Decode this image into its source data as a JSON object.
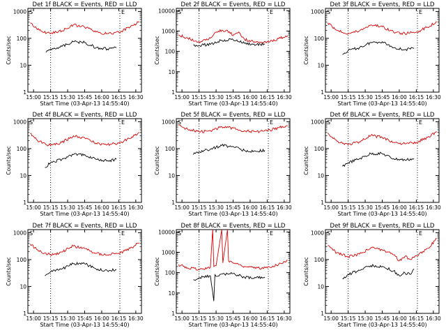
{
  "figure": {
    "colors": {
      "events": "#000000",
      "lld": "#dd0000",
      "axis": "#000000",
      "dotted": "#000000"
    }
  },
  "chart_data": [
    {
      "type": "line",
      "title": "Det 1f BLACK = Events, RED = LLD",
      "xlabel": "Start Time (03-Apr-13 14:55:40)",
      "ylabel": "Counts/sec",
      "x_ticks": [
        "15:00",
        "15:15",
        "15:30",
        "15:45",
        "16:00",
        "16:15",
        "16:30"
      ],
      "y_ticks": [
        "1",
        "10",
        "100",
        "1000"
      ],
      "xlim": [
        "14:55",
        "16:35"
      ],
      "ylim": [
        1,
        1300
      ],
      "yscale": "log",
      "vlines": [
        "15:15",
        "16:16"
      ],
      "markers": [
        "S",
        "E"
      ],
      "series": [
        {
          "color": "#dd0000",
          "x": [
            "14:57",
            "15:05",
            "15:15",
            "15:25",
            "15:35",
            "15:45",
            "15:55",
            "16:05",
            "16:15",
            "16:25",
            "16:33"
          ],
          "y": [
            380,
            200,
            150,
            190,
            320,
            260,
            170,
            150,
            170,
            260,
            420
          ]
        },
        {
          "color": "#000000",
          "x": [
            "15:11",
            "15:15",
            "15:25",
            "15:35",
            "15:45",
            "15:55",
            "16:05",
            "16:13"
          ],
          "y": [
            30,
            40,
            50,
            75,
            70,
            45,
            40,
            45
          ]
        }
      ]
    },
    {
      "type": "line",
      "title": "Det 2f BLACK = Events, RED = LLD",
      "xlabel": "Start Time (03-Apr-13 14:55:40)",
      "ylabel": "Counts/sec",
      "x_ticks": [
        "15:00",
        "15:15",
        "15:30",
        "15:45",
        "16:00",
        "16:15",
        "16:30"
      ],
      "y_ticks": [
        "1",
        "10",
        "100",
        "1000",
        "10000"
      ],
      "xlim": [
        "14:55",
        "16:35"
      ],
      "ylim": [
        1,
        13000
      ],
      "yscale": "log",
      "vlines": [
        "15:15",
        "16:16"
      ],
      "markers": [
        "S",
        "E"
      ],
      "series": [
        {
          "color": "#dd0000",
          "x": [
            "14:57",
            "15:05",
            "15:15",
            "15:25",
            "15:32",
            "15:40",
            "15:45",
            "15:50",
            "15:55",
            "16:05",
            "16:15",
            "16:25",
            "16:33"
          ],
          "y": [
            650,
            450,
            300,
            450,
            1000,
            1100,
            600,
            900,
            400,
            280,
            300,
            420,
            600
          ]
        },
        {
          "color": "#000000",
          "x": [
            "15:10",
            "15:15",
            "15:25",
            "15:35",
            "15:45",
            "15:55",
            "16:05",
            "16:13"
          ],
          "y": [
            200,
            200,
            220,
            350,
            380,
            250,
            210,
            230
          ]
        }
      ]
    },
    {
      "type": "line",
      "title": "Det 3f BLACK = Events, RED = LLD",
      "xlabel": "Start Time (03-Apr-13 14:55:40)",
      "ylabel": "Counts/sec",
      "x_ticks": [
        "15:00",
        "15:15",
        "15:30",
        "15:45",
        "16:00",
        "16:15",
        "16:30"
      ],
      "y_ticks": [
        "1",
        "10",
        "100",
        "1000"
      ],
      "xlim": [
        "14:55",
        "16:35"
      ],
      "ylim": [
        1,
        1300
      ],
      "yscale": "log",
      "vlines": [
        "15:15",
        "16:16"
      ],
      "markers": [
        "S",
        "E"
      ],
      "series": [
        {
          "color": "#dd0000",
          "x": [
            "14:57",
            "15:05",
            "15:15",
            "15:25",
            "15:35",
            "15:45",
            "15:55",
            "16:05",
            "16:15",
            "16:25",
            "16:33"
          ],
          "y": [
            380,
            200,
            150,
            190,
            320,
            270,
            170,
            150,
            170,
            260,
            420
          ]
        },
        {
          "color": "#000000",
          "x": [
            "15:10",
            "15:15",
            "15:25",
            "15:35",
            "15:45",
            "15:55",
            "16:05",
            "16:13"
          ],
          "y": [
            25,
            35,
            45,
            70,
            75,
            45,
            38,
            42
          ]
        }
      ]
    },
    {
      "type": "line",
      "title": "Det 4f BLACK = Events, RED = LLD",
      "xlabel": "Start Time (03-Apr-13 14:55:40)",
      "ylabel": "Counts/sec",
      "x_ticks": [
        "15:00",
        "15:15",
        "15:30",
        "15:45",
        "16:00",
        "16:15",
        "16:30"
      ],
      "y_ticks": [
        "1",
        "10",
        "100",
        "1000"
      ],
      "xlim": [
        "14:55",
        "16:35"
      ],
      "ylim": [
        1,
        1300
      ],
      "yscale": "log",
      "vlines": [
        "15:15",
        "16:16"
      ],
      "markers": [
        "S",
        "E"
      ],
      "series": [
        {
          "color": "#dd0000",
          "x": [
            "14:57",
            "15:05",
            "15:15",
            "15:25",
            "15:35",
            "15:45",
            "15:55",
            "16:05",
            "16:15",
            "16:25",
            "16:33"
          ],
          "y": [
            360,
            180,
            130,
            170,
            300,
            250,
            160,
            140,
            160,
            240,
            400
          ]
        },
        {
          "color": "#000000",
          "x": [
            "15:10",
            "15:15",
            "15:25",
            "15:35",
            "15:45",
            "15:55",
            "16:05",
            "16:13"
          ],
          "y": [
            20,
            30,
            40,
            60,
            60,
            40,
            35,
            40
          ]
        }
      ]
    },
    {
      "type": "line",
      "title": "Det 5f BLACK = Events, RED = LLD",
      "xlabel": "Start Time (03-Apr-13 14:55:40)",
      "ylabel": "Counts/sec",
      "x_ticks": [
        "15:00",
        "15:15",
        "15:30",
        "15:45",
        "16:00",
        "16:15",
        "16:30"
      ],
      "y_ticks": [
        "1",
        "10",
        "100",
        "1000"
      ],
      "xlim": [
        "14:55",
        "16:35"
      ],
      "ylim": [
        1,
        1300
      ],
      "yscale": "log",
      "vlines": [
        "15:15",
        "16:16"
      ],
      "markers": [
        "S",
        "E"
      ],
      "series": [
        {
          "color": "#dd0000",
          "x": [
            "14:57",
            "15:05",
            "15:15",
            "15:25",
            "15:35",
            "15:45",
            "15:55",
            "16:05",
            "16:15",
            "16:25",
            "16:33"
          ],
          "y": [
            750,
            520,
            420,
            470,
            650,
            580,
            460,
            420,
            450,
            600,
            720
          ]
        },
        {
          "color": "#000000",
          "x": [
            "15:10",
            "15:15",
            "15:25",
            "15:35",
            "15:45",
            "15:55",
            "16:05",
            "16:13"
          ],
          "y": [
            60,
            75,
            95,
            130,
            120,
            85,
            80,
            85
          ]
        }
      ]
    },
    {
      "type": "line",
      "title": "Det 6f BLACK = Events, RED = LLD",
      "xlabel": "Start Time (03-Apr-13 14:55:40)",
      "ylabel": "Counts/sec",
      "x_ticks": [
        "15:00",
        "15:15",
        "15:30",
        "15:45",
        "16:00",
        "16:15",
        "16:30"
      ],
      "y_ticks": [
        "1",
        "10",
        "100",
        "1000"
      ],
      "xlim": [
        "14:55",
        "16:35"
      ],
      "ylim": [
        1,
        1300
      ],
      "yscale": "log",
      "vlines": [
        "15:15",
        "16:16"
      ],
      "markers": [
        "S",
        "E"
      ],
      "series": [
        {
          "color": "#dd0000",
          "x": [
            "14:57",
            "15:05",
            "15:15",
            "15:25",
            "15:35",
            "15:45",
            "15:55",
            "16:05",
            "16:15",
            "16:25",
            "16:33"
          ],
          "y": [
            380,
            190,
            140,
            180,
            310,
            260,
            170,
            150,
            170,
            260,
            430
          ]
        },
        {
          "color": "#000000",
          "x": [
            "15:10",
            "15:15",
            "15:25",
            "15:35",
            "15:45",
            "15:55",
            "16:05",
            "16:13"
          ],
          "y": [
            22,
            30,
            42,
            65,
            65,
            42,
            38,
            42
          ]
        }
      ]
    },
    {
      "type": "line",
      "title": "Det 7f BLACK = Events, RED = LLD",
      "xlabel": "Start Time (03-Apr-13 14:55:40)",
      "ylabel": "Counts/sec",
      "x_ticks": [
        "15:00",
        "15:15",
        "15:30",
        "15:45",
        "16:00",
        "16:15",
        "16:30"
      ],
      "y_ticks": [
        "1",
        "10",
        "100",
        "1000"
      ],
      "xlim": [
        "14:55",
        "16:35"
      ],
      "ylim": [
        1,
        1300
      ],
      "yscale": "log",
      "vlines": [
        "15:15",
        "16:16"
      ],
      "markers": [
        "S",
        "E"
      ],
      "series": [
        {
          "color": "#dd0000",
          "x": [
            "14:57",
            "15:05",
            "15:15",
            "15:25",
            "15:35",
            "15:45",
            "15:55",
            "16:05",
            "16:15",
            "16:25",
            "16:33"
          ],
          "y": [
            380,
            200,
            150,
            190,
            320,
            260,
            170,
            150,
            170,
            260,
            420
          ]
        },
        {
          "color": "#000000",
          "x": [
            "15:10",
            "15:15",
            "15:25",
            "15:35",
            "15:45",
            "15:55",
            "16:05",
            "16:13"
          ],
          "y": [
            25,
            35,
            45,
            70,
            70,
            45,
            38,
            42
          ]
        }
      ]
    },
    {
      "type": "line",
      "title": "Det 8f BLACK = Events, RED = LLD",
      "xlabel": "Start Time (03-Apr-13 14:55:40)",
      "ylabel": "Counts/sec",
      "x_ticks": [
        "15:00",
        "15:15",
        "15:30",
        "15:45",
        "16:00",
        "16:15",
        "16:30"
      ],
      "y_ticks": [
        "1",
        "10",
        "100",
        "1000",
        "10000"
      ],
      "xlim": [
        "14:55",
        "16:35"
      ],
      "ylim": [
        1,
        13000
      ],
      "yscale": "log",
      "vlines": [
        "15:15",
        "16:16"
      ],
      "markers": [
        "S",
        "E"
      ],
      "series": [
        {
          "color": "#dd0000",
          "x": [
            "14:57",
            "15:05",
            "15:15",
            "15:25",
            "15:27",
            "15:28",
            "15:30",
            "15:35",
            "15:36",
            "15:40",
            "15:41",
            "15:45",
            "15:55",
            "16:05",
            "16:15",
            "16:25",
            "16:33"
          ],
          "y": [
            250,
            170,
            140,
            180,
            13000,
            200,
            220,
            13000,
            300,
            13000,
            380,
            300,
            200,
            160,
            170,
            250,
            400
          ]
        },
        {
          "color": "#000000",
          "x": [
            "15:10",
            "15:15",
            "15:25",
            "15:28",
            "15:29",
            "15:31",
            "15:35",
            "15:45",
            "15:55",
            "16:05",
            "16:13"
          ],
          "y": [
            45,
            55,
            70,
            4,
            80,
            65,
            85,
            90,
            60,
            55,
            60
          ]
        }
      ]
    },
    {
      "type": "line",
      "title": "Det 9f BLACK = Events, RED = LLD",
      "xlabel": "Start Time (03-Apr-13 14:55:40)",
      "ylabel": "Counts/sec",
      "x_ticks": [
        "15:00",
        "15:15",
        "15:30",
        "15:45",
        "16:00",
        "16:15",
        "16:30"
      ],
      "y_ticks": [
        "1",
        "10",
        "100",
        "1000"
      ],
      "xlim": [
        "14:55",
        "16:35"
      ],
      "ylim": [
        1,
        1300
      ],
      "yscale": "log",
      "vlines": [
        "15:15",
        "16:16"
      ],
      "markers": [
        "S",
        "E"
      ],
      "series": [
        {
          "color": "#dd0000",
          "x": [
            "14:57",
            "15:05",
            "15:15",
            "15:25",
            "15:35",
            "15:45",
            "15:55",
            "16:00",
            "16:05",
            "16:10",
            "16:15",
            "16:25",
            "16:33"
          ],
          "y": [
            330,
            180,
            130,
            160,
            280,
            230,
            150,
            90,
            130,
            100,
            140,
            260,
            600
          ]
        },
        {
          "color": "#000000",
          "x": [
            "15:10",
            "15:15",
            "15:25",
            "15:35",
            "15:45",
            "15:55",
            "16:00",
            "16:05",
            "16:10",
            "16:13"
          ],
          "y": [
            20,
            28,
            40,
            60,
            55,
            38,
            25,
            32,
            28,
            45
          ]
        }
      ]
    }
  ]
}
